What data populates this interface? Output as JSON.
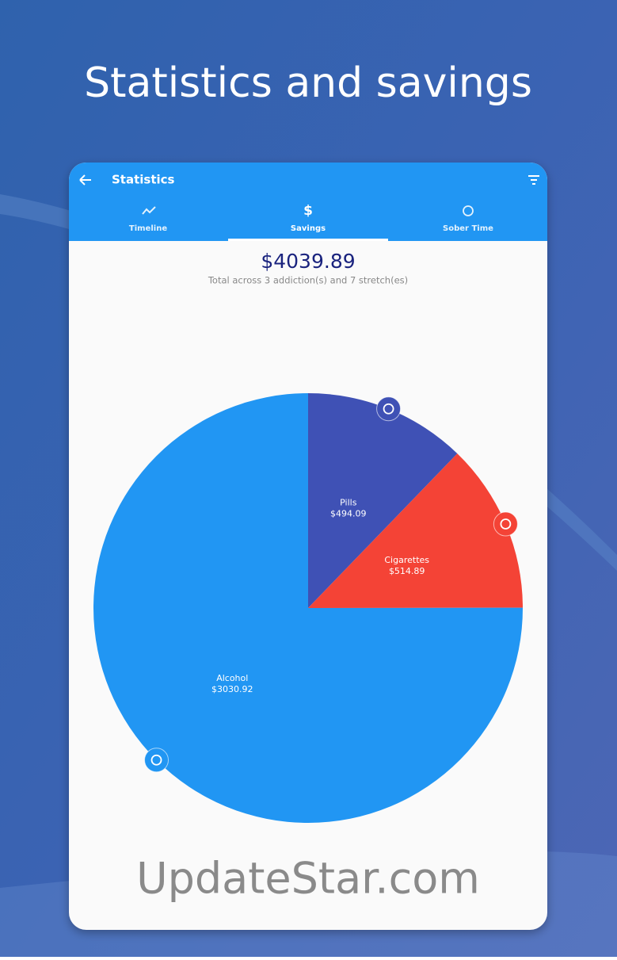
{
  "header": {
    "title": "Statistics and savings"
  },
  "app_bar": {
    "title": "Statistics"
  },
  "tabs": [
    {
      "label": "Timeline"
    },
    {
      "label": "Savings"
    },
    {
      "label": "Sober Time"
    }
  ],
  "summary": {
    "total": "$4039.89",
    "subtitle": "Total across 3 addiction(s) and 7 stretch(es)"
  },
  "chart_data": {
    "type": "pie",
    "categories": [
      "Pills",
      "Cigarettes",
      "Alcohol"
    ],
    "values": [
      494.09,
      514.89,
      3030.92
    ],
    "value_labels": [
      "$494.09",
      "$514.89",
      "$3030.92"
    ],
    "colors": [
      "#3f51b5",
      "#f44336",
      "#2196f3"
    ]
  },
  "watermark": "UpdateStar.com"
}
